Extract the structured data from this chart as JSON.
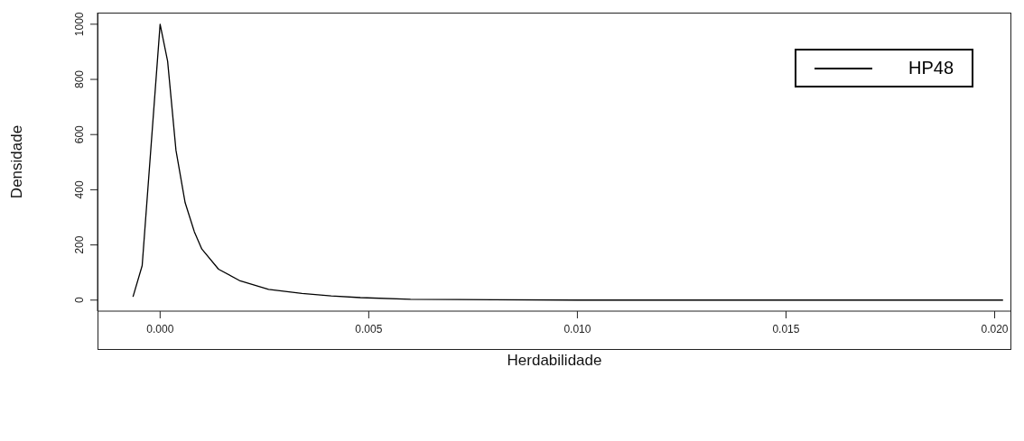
{
  "chart_data": {
    "type": "line",
    "xlabel": "Herdabilidade",
    "ylabel": "Densidade",
    "x": [
      -0.00065,
      -0.00043,
      0,
      0.00018,
      0.00038,
      0.0006,
      0.00082,
      0.001,
      0.0014,
      0.0019,
      0.0026,
      0.0034,
      0.0041,
      0.0048,
      0.006,
      0.008,
      0.01,
      0.015,
      0.0202
    ],
    "series": [
      {
        "name": "HP48",
        "color": "#000000",
        "values": [
          12,
          125,
          1000,
          866,
          543,
          353,
          248,
          185,
          112,
          71,
          39,
          24,
          15,
          9,
          3,
          1,
          0,
          0,
          0
        ]
      }
    ],
    "xlim": [
      -0.0015,
      0.0204
    ],
    "xticks": [
      {
        "value": 0,
        "label": "0.000"
      },
      {
        "value": 0.005,
        "label": "0.005"
      },
      {
        "value": 0.01,
        "label": "0.010"
      },
      {
        "value": 0.015,
        "label": "0.015"
      },
      {
        "value": 0.02,
        "label": "0.020"
      }
    ],
    "ylim": [
      -40,
      1042
    ],
    "yticks": [
      0,
      200,
      400,
      600,
      800,
      1000
    ],
    "legend": "top right",
    "grid": false,
    "marker": "none",
    "line_style": "solid"
  }
}
